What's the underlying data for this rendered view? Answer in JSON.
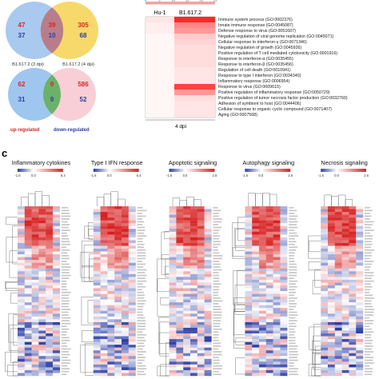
{
  "venn_top": {
    "left_only": "47",
    "overlap_red": "39",
    "right_only": "305",
    "left_only_blue": "37",
    "overlap_blue": "10",
    "right_only_blue": "68"
  },
  "venn_bottom": {
    "left_only": "62",
    "overlap_red": "9",
    "right_only": "586",
    "left_only_blue": "31",
    "overlap_blue": "9",
    "right_only_blue": "52"
  },
  "venn_labels": {
    "left": "B1.617.2 (3 dpi)",
    "right": "B1.617.2 (4 dpi)"
  },
  "venn_legend": {
    "up": "up-regulated",
    "down": "down-regulated"
  },
  "colors": {
    "venn_left": "#a9c9ee",
    "venn_right": "#f7d86a",
    "venn_overlap_top": "#b97d8a",
    "venn_left_bottom": "#9fc6ef",
    "venn_right_bottom": "#f8cfd6",
    "venn_overlap_bottom": "#6ab26a",
    "up": "#d62728",
    "down": "#2c3e9e"
  },
  "go_panel": {
    "scale_ticks": [
      "0",
      "5",
      "10",
      "15",
      "20",
      "25"
    ],
    "columns": [
      "Hu-1",
      "B1.617.2"
    ],
    "x_label": "4 dpi",
    "terms": [
      "Immune system process (GO:0002376)",
      "Innate immune response (GO:0045087)",
      "Defense response to virus (GO:0051607)",
      "Negative regulation of viral genome replication (GO:0045071)",
      "Cellular response to interferon-γ (GO:0071346)",
      "Negative regulation of growth (GO:0045926)",
      "Positive regulation of T cell mediated cytotoxicity (GO:0001916)",
      "Response to interferon-α (GO:0035455)",
      "Response to interferon-β (GO:0035456)",
      "Regulation of cell death (GO:0010941)",
      "Response to type I interferon (GO:0034340)",
      "Inflammatory response (GO:0006954)",
      "Response to virus (GO:0009615)",
      "Positive regulation of inflammatory response (GO:0050729)",
      "Positive regulation of tumor necrosis factor production (GO:0032760)",
      "Adhesion of symbiont to host (GO:0044406)",
      "Cellular response to organic cyclic compound (GO:0071407)",
      "Aging (GO:0007568)"
    ],
    "values_hu1": [
      3,
      2,
      2,
      1,
      1,
      1,
      1,
      1,
      1,
      1,
      1,
      1,
      1,
      1,
      1,
      1,
      1,
      1
    ],
    "values_b1617": [
      25,
      14,
      12,
      6,
      5,
      4,
      4,
      4,
      4,
      3,
      3,
      3,
      22,
      12,
      4,
      3,
      3,
      3
    ]
  },
  "panel_c": {
    "label": "c",
    "heatmaps": [
      {
        "title": "Inflammatory cytokines",
        "ticks": [
          "-1.6",
          "0.0",
          "6.4"
        ],
        "seed": 3
      },
      {
        "title": "Type I IFN response",
        "ticks": [
          "-1.6",
          "0.0",
          "6.4"
        ],
        "seed": 7
      },
      {
        "title": "Apoptotic signaling",
        "ticks": [
          "-1.6",
          "0.0",
          "2.6"
        ],
        "seed": 11
      },
      {
        "title": "Autophagy signaling",
        "ticks": [
          "-1.6",
          "0.0",
          "2.6"
        ],
        "seed": 17
      },
      {
        "title": "Necrosis signaling",
        "ticks": [
          "-1.6",
          "0.0",
          "2.6"
        ],
        "seed": 23
      }
    ]
  }
}
